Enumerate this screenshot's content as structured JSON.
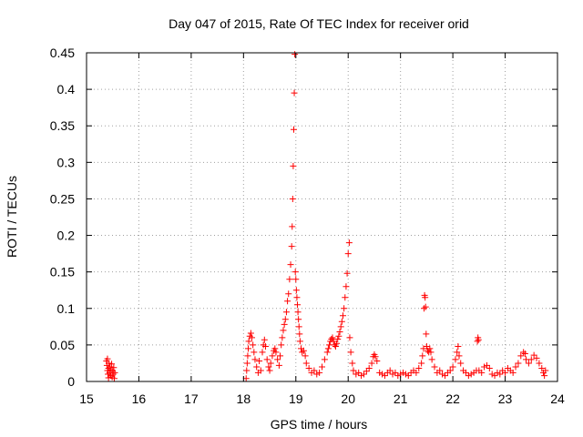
{
  "chart_data": {
    "type": "scatter",
    "title": "Day 047 of 2015, Rate Of TEC Index for receiver orid",
    "xlabel": "GPS time / hours",
    "ylabel": "ROTI / TECUs",
    "xlim": [
      15,
      24
    ],
    "ylim": [
      0,
      0.45
    ],
    "x_ticks": [
      15,
      16,
      17,
      18,
      19,
      20,
      21,
      22,
      23,
      24
    ],
    "x_tick_labels": [
      "15",
      "16",
      "17",
      "18",
      "19",
      "20",
      "21",
      "22",
      "23",
      "24"
    ],
    "y_ticks": [
      0,
      0.05,
      0.1,
      0.15,
      0.2,
      0.25,
      0.3,
      0.35,
      0.4,
      0.45
    ],
    "y_tick_labels": [
      "0",
      "0.05",
      "0.1",
      "0.15",
      "0.2",
      "0.25",
      "0.3",
      "0.35",
      "0.4",
      "0.45"
    ],
    "grid": true,
    "marker": "+",
    "color": "#ff0000",
    "series": [
      {
        "name": "ROTI",
        "points": [
          [
            15.38,
            0.028
          ],
          [
            15.39,
            0.022
          ],
          [
            15.4,
            0.015
          ],
          [
            15.4,
            0.031
          ],
          [
            15.41,
            0.01
          ],
          [
            15.42,
            0.018
          ],
          [
            15.42,
            0.005
          ],
          [
            15.43,
            0.025
          ],
          [
            15.44,
            0.012
          ],
          [
            15.45,
            0.02
          ],
          [
            15.46,
            0.008
          ],
          [
            15.47,
            0.016
          ],
          [
            15.48,
            0.024
          ],
          [
            15.49,
            0.006
          ],
          [
            15.5,
            0.014
          ],
          [
            15.51,
            0.01
          ],
          [
            15.52,
            0.019
          ],
          [
            15.53,
            0.004
          ],
          [
            15.54,
            0.012
          ],
          [
            18.05,
            0.004
          ],
          [
            18.06,
            0.015
          ],
          [
            18.07,
            0.025
          ],
          [
            18.08,
            0.035
          ],
          [
            18.09,
            0.045
          ],
          [
            18.1,
            0.055
          ],
          [
            18.12,
            0.062
          ],
          [
            18.14,
            0.066
          ],
          [
            18.16,
            0.06
          ],
          [
            18.18,
            0.05
          ],
          [
            18.2,
            0.04
          ],
          [
            18.22,
            0.03
          ],
          [
            18.25,
            0.02
          ],
          [
            18.28,
            0.012
          ],
          [
            18.3,
            0.028
          ],
          [
            18.33,
            0.015
          ],
          [
            18.36,
            0.04
          ],
          [
            18.38,
            0.05
          ],
          [
            18.4,
            0.057
          ],
          [
            18.42,
            0.048
          ],
          [
            18.45,
            0.03
          ],
          [
            18.48,
            0.02
          ],
          [
            18.5,
            0.015
          ],
          [
            18.52,
            0.025
          ],
          [
            18.55,
            0.035
          ],
          [
            18.58,
            0.042
          ],
          [
            18.6,
            0.045
          ],
          [
            18.62,
            0.04
          ],
          [
            18.65,
            0.03
          ],
          [
            18.68,
            0.022
          ],
          [
            18.7,
            0.035
          ],
          [
            18.72,
            0.05
          ],
          [
            18.74,
            0.06
          ],
          [
            18.76,
            0.07
          ],
          [
            18.78,
            0.078
          ],
          [
            18.8,
            0.085
          ],
          [
            18.82,
            0.095
          ],
          [
            18.84,
            0.11
          ],
          [
            18.86,
            0.12
          ],
          [
            18.88,
            0.14
          ],
          [
            18.9,
            0.16
          ],
          [
            18.92,
            0.185
          ],
          [
            18.93,
            0.212
          ],
          [
            18.94,
            0.25
          ],
          [
            18.95,
            0.295
          ],
          [
            18.96,
            0.345
          ],
          [
            18.97,
            0.395
          ],
          [
            18.98,
            0.448
          ],
          [
            18.99,
            0.15
          ],
          [
            19.0,
            0.14
          ],
          [
            19.01,
            0.125
          ],
          [
            19.02,
            0.115
          ],
          [
            19.03,
            0.105
          ],
          [
            19.04,
            0.095
          ],
          [
            19.05,
            0.085
          ],
          [
            19.06,
            0.075
          ],
          [
            19.07,
            0.065
          ],
          [
            19.08,
            0.055
          ],
          [
            19.1,
            0.045
          ],
          [
            19.12,
            0.04
          ],
          [
            19.15,
            0.042
          ],
          [
            19.18,
            0.035
          ],
          [
            19.2,
            0.025
          ],
          [
            19.25,
            0.018
          ],
          [
            19.3,
            0.012
          ],
          [
            19.35,
            0.015
          ],
          [
            19.4,
            0.01
          ],
          [
            19.45,
            0.012
          ],
          [
            19.5,
            0.02
          ],
          [
            19.55,
            0.03
          ],
          [
            19.6,
            0.04
          ],
          [
            19.62,
            0.045
          ],
          [
            19.64,
            0.05
          ],
          [
            19.66,
            0.055
          ],
          [
            19.68,
            0.058
          ],
          [
            19.7,
            0.06
          ],
          [
            19.72,
            0.055
          ],
          [
            19.74,
            0.05
          ],
          [
            19.76,
            0.048
          ],
          [
            19.78,
            0.052
          ],
          [
            19.8,
            0.058
          ],
          [
            19.82,
            0.062
          ],
          [
            19.84,
            0.068
          ],
          [
            19.86,
            0.075
          ],
          [
            19.88,
            0.082
          ],
          [
            19.9,
            0.09
          ],
          [
            19.92,
            0.1
          ],
          [
            19.94,
            0.115
          ],
          [
            19.96,
            0.13
          ],
          [
            19.98,
            0.148
          ],
          [
            20.0,
            0.175
          ],
          [
            20.02,
            0.19
          ],
          [
            20.03,
            0.06
          ],
          [
            20.05,
            0.04
          ],
          [
            20.08,
            0.025
          ],
          [
            20.1,
            0.015
          ],
          [
            20.15,
            0.01
          ],
          [
            20.2,
            0.012
          ],
          [
            20.25,
            0.008
          ],
          [
            20.3,
            0.01
          ],
          [
            20.35,
            0.014
          ],
          [
            20.4,
            0.018
          ],
          [
            20.45,
            0.025
          ],
          [
            20.48,
            0.034
          ],
          [
            20.5,
            0.037
          ],
          [
            20.52,
            0.034
          ],
          [
            20.55,
            0.028
          ],
          [
            20.6,
            0.012
          ],
          [
            20.65,
            0.01
          ],
          [
            20.7,
            0.008
          ],
          [
            20.75,
            0.012
          ],
          [
            20.8,
            0.015
          ],
          [
            20.85,
            0.01
          ],
          [
            20.9,
            0.012
          ],
          [
            20.95,
            0.008
          ],
          [
            21.0,
            0.01
          ],
          [
            21.05,
            0.012
          ],
          [
            21.1,
            0.01
          ],
          [
            21.15,
            0.008
          ],
          [
            21.2,
            0.012
          ],
          [
            21.25,
            0.015
          ],
          [
            21.3,
            0.012
          ],
          [
            21.35,
            0.018
          ],
          [
            21.4,
            0.025
          ],
          [
            21.42,
            0.035
          ],
          [
            21.44,
            0.045
          ],
          [
            21.45,
            0.1
          ],
          [
            21.46,
            0.118
          ],
          [
            21.47,
            0.115
          ],
          [
            21.48,
            0.102
          ],
          [
            21.49,
            0.065
          ],
          [
            21.5,
            0.048
          ],
          [
            21.52,
            0.042
          ],
          [
            21.54,
            0.04
          ],
          [
            21.56,
            0.045
          ],
          [
            21.58,
            0.04
          ],
          [
            21.6,
            0.03
          ],
          [
            21.65,
            0.02
          ],
          [
            21.7,
            0.012
          ],
          [
            21.75,
            0.015
          ],
          [
            21.8,
            0.01
          ],
          [
            21.85,
            0.008
          ],
          [
            21.9,
            0.012
          ],
          [
            21.95,
            0.015
          ],
          [
            22.0,
            0.02
          ],
          [
            22.05,
            0.03
          ],
          [
            22.08,
            0.04
          ],
          [
            22.1,
            0.048
          ],
          [
            22.12,
            0.035
          ],
          [
            22.15,
            0.025
          ],
          [
            22.2,
            0.015
          ],
          [
            22.25,
            0.012
          ],
          [
            22.3,
            0.008
          ],
          [
            22.35,
            0.01
          ],
          [
            22.4,
            0.012
          ],
          [
            22.45,
            0.015
          ],
          [
            22.47,
            0.055
          ],
          [
            22.48,
            0.06
          ],
          [
            22.49,
            0.057
          ],
          [
            22.5,
            0.015
          ],
          [
            22.55,
            0.012
          ],
          [
            22.6,
            0.02
          ],
          [
            22.65,
            0.022
          ],
          [
            22.7,
            0.018
          ],
          [
            22.75,
            0.01
          ],
          [
            22.8,
            0.008
          ],
          [
            22.85,
            0.012
          ],
          [
            22.9,
            0.01
          ],
          [
            22.95,
            0.015
          ],
          [
            23.0,
            0.012
          ],
          [
            23.05,
            0.018
          ],
          [
            23.1,
            0.015
          ],
          [
            23.15,
            0.012
          ],
          [
            23.2,
            0.02
          ],
          [
            23.25,
            0.025
          ],
          [
            23.3,
            0.035
          ],
          [
            23.35,
            0.04
          ],
          [
            23.38,
            0.038
          ],
          [
            23.4,
            0.03
          ],
          [
            23.45,
            0.025
          ],
          [
            23.5,
            0.03
          ],
          [
            23.55,
            0.036
          ],
          [
            23.6,
            0.032
          ],
          [
            23.65,
            0.025
          ],
          [
            23.7,
            0.018
          ],
          [
            23.73,
            0.012
          ],
          [
            23.75,
            0.008
          ],
          [
            23.77,
            0.015
          ]
        ]
      }
    ]
  }
}
